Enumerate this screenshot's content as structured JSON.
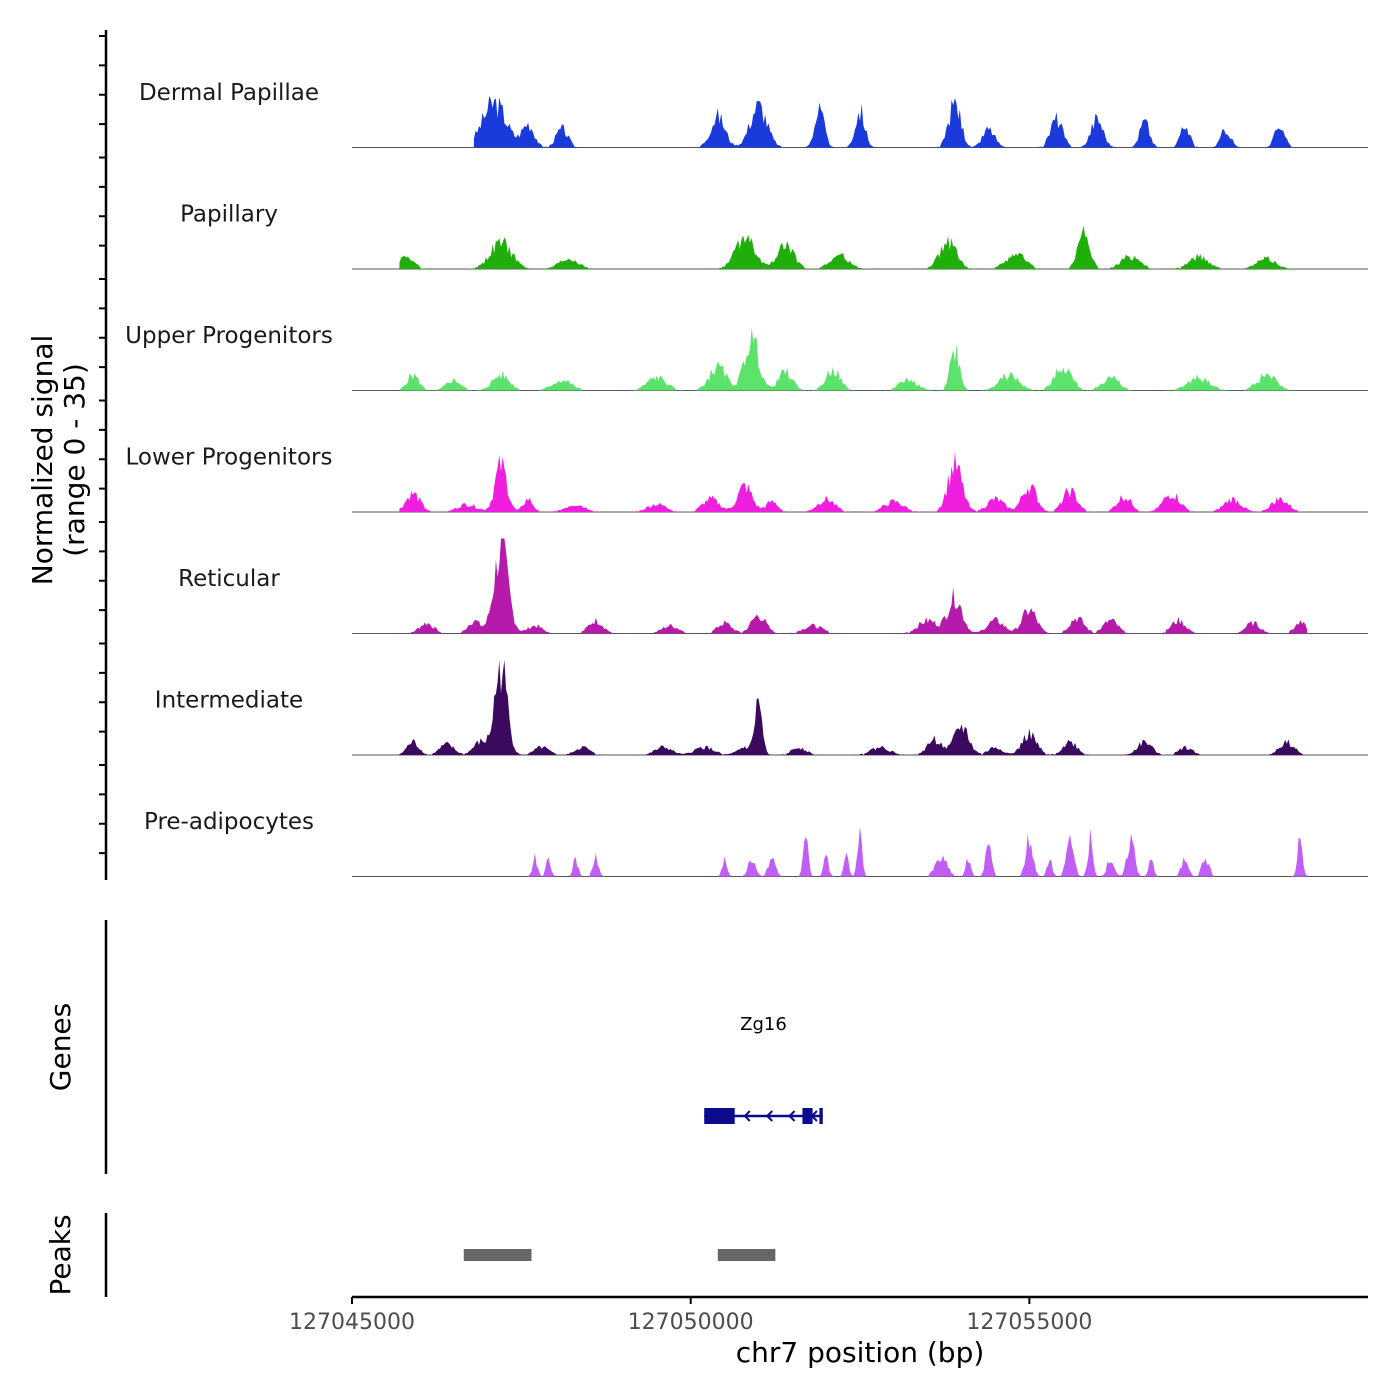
{
  "chart_data": {
    "type": "area",
    "title": "",
    "xlabel": "chr7 position (bp)",
    "ylabel": "Normalized signal (range 0 - 35)",
    "ylabel_lines": [
      "Normalized signal",
      "(range 0 - 35)"
    ],
    "xlim": [
      127045000,
      127059999
    ],
    "ylim": [
      0,
      35
    ],
    "x_ticks": [
      127045000,
      127050000,
      127055000
    ],
    "x_tick_labels": [
      "127045000",
      "127050000",
      "127055000"
    ],
    "panel_labels": {
      "genes": "Genes",
      "peaks": "Peaks"
    },
    "series": [
      {
        "name": "Dermal Papillae",
        "color": "#1a3adb",
        "start": 127046800,
        "end": 127059100,
        "peaks": [
          [
            127047100,
            17,
            500
          ],
          [
            127047600,
            9,
            250
          ],
          [
            127048100,
            7,
            250
          ],
          [
            127050400,
            12,
            300
          ],
          [
            127051000,
            16,
            350
          ],
          [
            127051900,
            14,
            200
          ],
          [
            127052500,
            14,
            200
          ],
          [
            127053900,
            17,
            250
          ],
          [
            127054400,
            7,
            250
          ],
          [
            127055400,
            11,
            250
          ],
          [
            127056000,
            11,
            250
          ],
          [
            127056700,
            10,
            200
          ],
          [
            127057300,
            8,
            200
          ],
          [
            127057900,
            7,
            200
          ],
          [
            127058700,
            9,
            200
          ]
        ]
      },
      {
        "name": "Papillary",
        "color": "#1fae0a",
        "start": 127045700,
        "end": 127059100,
        "peaks": [
          [
            127045800,
            5,
            300
          ],
          [
            127047200,
            10,
            450
          ],
          [
            127048200,
            4,
            400
          ],
          [
            127050800,
            12,
            400
          ],
          [
            127051400,
            9,
            350
          ],
          [
            127052200,
            5,
            400
          ],
          [
            127053800,
            10,
            350
          ],
          [
            127054800,
            6,
            400
          ],
          [
            127055800,
            13,
            250
          ],
          [
            127056500,
            5,
            400
          ],
          [
            127057500,
            5,
            400
          ],
          [
            127058500,
            4,
            400
          ]
        ]
      },
      {
        "name": "Upper Progenitors",
        "color": "#5be36b",
        "start": 127045700,
        "end": 127059100,
        "peaks": [
          [
            127045900,
            6,
            250
          ],
          [
            127046500,
            4,
            300
          ],
          [
            127047200,
            6,
            350
          ],
          [
            127048100,
            4,
            400
          ],
          [
            127049500,
            5,
            400
          ],
          [
            127050400,
            9,
            350
          ],
          [
            127050900,
            20,
            300
          ],
          [
            127051400,
            7,
            300
          ],
          [
            127052100,
            8,
            300
          ],
          [
            127053200,
            4,
            400
          ],
          [
            127053900,
            16,
            200
          ],
          [
            127054700,
            6,
            400
          ],
          [
            127055500,
            9,
            350
          ],
          [
            127056200,
            5,
            350
          ],
          [
            127057500,
            5,
            450
          ],
          [
            127058500,
            6,
            400
          ]
        ]
      },
      {
        "name": "Lower Progenitors",
        "color": "#f01fe0",
        "start": 127045700,
        "end": 127059100,
        "peaks": [
          [
            127045900,
            7,
            300
          ],
          [
            127046700,
            3,
            400
          ],
          [
            127047200,
            18,
            250
          ],
          [
            127047600,
            5,
            200
          ],
          [
            127048300,
            3,
            400
          ],
          [
            127049500,
            3,
            400
          ],
          [
            127050300,
            5,
            350
          ],
          [
            127050800,
            10,
            300
          ],
          [
            127051200,
            4,
            250
          ],
          [
            127052000,
            5,
            350
          ],
          [
            127053000,
            4,
            400
          ],
          [
            127053900,
            18,
            300
          ],
          [
            127054500,
            5,
            350
          ],
          [
            127055000,
            10,
            300
          ],
          [
            127055600,
            8,
            300
          ],
          [
            127056400,
            6,
            300
          ],
          [
            127057100,
            7,
            350
          ],
          [
            127058000,
            5,
            350
          ],
          [
            127058700,
            5,
            350
          ]
        ]
      },
      {
        "name": "Reticular",
        "color": "#b51aab",
        "start": 127045800,
        "end": 127059100,
        "peaks": [
          [
            127046100,
            4,
            300
          ],
          [
            127046800,
            5,
            250
          ],
          [
            127047200,
            32,
            300
          ],
          [
            127047700,
            3,
            300
          ],
          [
            127048600,
            5,
            300
          ],
          [
            127049700,
            3,
            350
          ],
          [
            127050500,
            4,
            300
          ],
          [
            127051000,
            7,
            300
          ],
          [
            127051800,
            3,
            400
          ],
          [
            127053500,
            5,
            400
          ],
          [
            127053900,
            14,
            300
          ],
          [
            127054500,
            5,
            350
          ],
          [
            127055000,
            9,
            300
          ],
          [
            127055700,
            6,
            300
          ],
          [
            127056200,
            5,
            300
          ],
          [
            127057200,
            5,
            300
          ],
          [
            127058300,
            4,
            300
          ],
          [
            127059000,
            4,
            250
          ]
        ]
      },
      {
        "name": "Intermediate",
        "color": "#3b0a5e",
        "start": 127045700,
        "end": 127059100,
        "peaks": [
          [
            127045900,
            5,
            250
          ],
          [
            127046400,
            4,
            300
          ],
          [
            127046900,
            5,
            300
          ],
          [
            127047200,
            34,
            260
          ],
          [
            127047800,
            3,
            300
          ],
          [
            127048400,
            3,
            300
          ],
          [
            127049600,
            3,
            350
          ],
          [
            127050200,
            3,
            400
          ],
          [
            127050800,
            3,
            300
          ],
          [
            127051000,
            20,
            150
          ],
          [
            127051600,
            3,
            300
          ],
          [
            127052800,
            3,
            400
          ],
          [
            127053600,
            6,
            300
          ],
          [
            127054000,
            11,
            300
          ],
          [
            127054500,
            3,
            300
          ],
          [
            127055000,
            8,
            300
          ],
          [
            127055600,
            5,
            300
          ],
          [
            127056700,
            5,
            300
          ],
          [
            127057300,
            3,
            300
          ],
          [
            127058800,
            5,
            300
          ]
        ]
      },
      {
        "name": "Pre-adipocytes",
        "color": "#c05ef5",
        "start": 127047400,
        "end": 127059100,
        "peaks": [
          [
            127047700,
            7,
            100
          ],
          [
            127047900,
            7,
            100
          ],
          [
            127048300,
            7,
            100
          ],
          [
            127048600,
            7,
            120
          ],
          [
            127050500,
            7,
            100
          ],
          [
            127050900,
            7,
            150
          ],
          [
            127051200,
            7,
            150
          ],
          [
            127051700,
            15,
            100
          ],
          [
            127052000,
            7,
            100
          ],
          [
            127052300,
            7,
            100
          ],
          [
            127052500,
            15,
            100
          ],
          [
            127053700,
            7,
            250
          ],
          [
            127054100,
            7,
            100
          ],
          [
            127054400,
            15,
            120
          ],
          [
            127055000,
            15,
            150
          ],
          [
            127055300,
            7,
            100
          ],
          [
            127055600,
            15,
            150
          ],
          [
            127055900,
            15,
            100
          ],
          [
            127056200,
            7,
            150
          ],
          [
            127056500,
            15,
            150
          ],
          [
            127056800,
            7,
            100
          ],
          [
            127057300,
            7,
            150
          ],
          [
            127057600,
            7,
            150
          ],
          [
            127059000,
            15,
            100
          ]
        ]
      }
    ],
    "genes": [
      {
        "name": "Zg16",
        "strand": "-",
        "start": 127050200,
        "end": 127051950,
        "exons": [
          [
            127050200,
            127050650
          ],
          [
            127051650,
            127051800
          ],
          [
            127051900,
            127051950
          ]
        ]
      }
    ],
    "peaks": [
      [
        127046650,
        127047650
      ],
      [
        127050400,
        127051250
      ]
    ],
    "colors": {
      "axis": "#000000",
      "baseline": "#555555",
      "gene": "#0b0b8c",
      "peak": "#666666",
      "tick_label": "#4d4d4d"
    }
  }
}
